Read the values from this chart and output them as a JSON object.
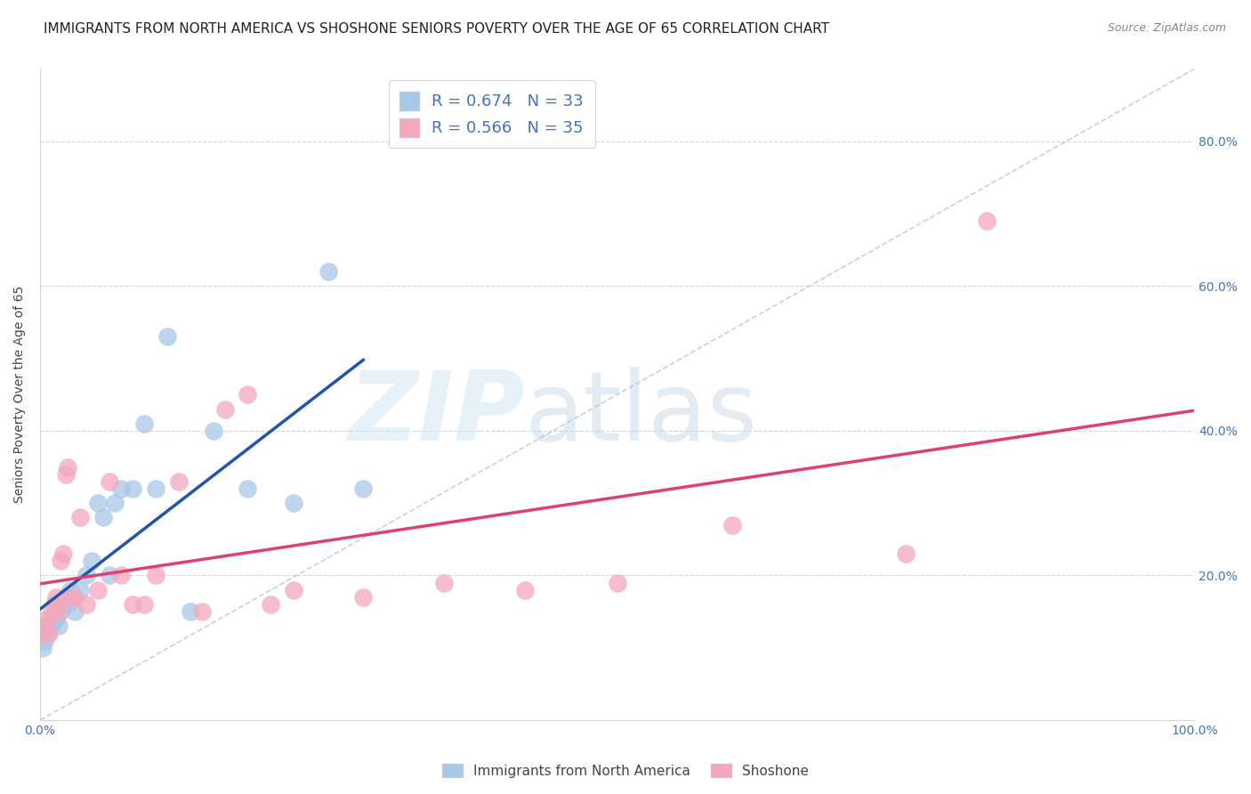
{
  "title": "IMMIGRANTS FROM NORTH AMERICA VS SHOSHONE SENIORS POVERTY OVER THE AGE OF 65 CORRELATION CHART",
  "source": "Source: ZipAtlas.com",
  "ylabel": "Seniors Poverty Over the Age of 65",
  "xlim": [
    0,
    1.0
  ],
  "ylim": [
    0,
    0.9
  ],
  "x_ticks": [
    0.0,
    0.25,
    0.5,
    0.75,
    1.0
  ],
  "x_tick_labels": [
    "0.0%",
    "",
    "",
    "",
    "100.0%"
  ],
  "y_ticks": [
    0.0,
    0.2,
    0.4,
    0.6,
    0.8
  ],
  "y_tick_labels": [
    "",
    "20.0%",
    "40.0%",
    "60.0%",
    "80.0%"
  ],
  "blue_color": "#a8c8e8",
  "pink_color": "#f4a8bc",
  "blue_line_color": "#2255aa",
  "pink_line_color": "#e04070",
  "dashed_line_color": "#b8c8d8",
  "legend_r_blue": "R = 0.674",
  "legend_n_blue": "N = 33",
  "legend_r_pink": "R = 0.566",
  "legend_n_pink": "N = 35",
  "background_color": "#ffffff",
  "grid_color": "#d0d8e8",
  "title_fontsize": 11,
  "axis_tick_fontsize": 10,
  "ylabel_fontsize": 10,
  "blue_scatter_x": [
    0.002,
    0.004,
    0.006,
    0.008,
    0.01,
    0.012,
    0.014,
    0.016,
    0.018,
    0.02,
    0.022,
    0.024,
    0.026,
    0.028,
    0.03,
    0.035,
    0.04,
    0.045,
    0.05,
    0.055,
    0.06,
    0.065,
    0.07,
    0.08,
    0.09,
    0.1,
    0.11,
    0.13,
    0.15,
    0.18,
    0.22,
    0.25,
    0.28
  ],
  "blue_scatter_y": [
    0.1,
    0.11,
    0.12,
    0.13,
    0.13,
    0.14,
    0.14,
    0.13,
    0.15,
    0.16,
    0.17,
    0.16,
    0.18,
    0.17,
    0.15,
    0.18,
    0.2,
    0.22,
    0.3,
    0.28,
    0.2,
    0.3,
    0.32,
    0.32,
    0.41,
    0.32,
    0.53,
    0.15,
    0.4,
    0.32,
    0.3,
    0.62,
    0.32
  ],
  "pink_scatter_x": [
    0.002,
    0.004,
    0.006,
    0.008,
    0.01,
    0.012,
    0.014,
    0.016,
    0.018,
    0.02,
    0.022,
    0.024,
    0.026,
    0.03,
    0.035,
    0.04,
    0.05,
    0.06,
    0.07,
    0.08,
    0.09,
    0.1,
    0.12,
    0.14,
    0.16,
    0.18,
    0.2,
    0.22,
    0.28,
    0.35,
    0.42,
    0.5,
    0.6,
    0.75,
    0.82
  ],
  "pink_scatter_y": [
    0.12,
    0.13,
    0.14,
    0.12,
    0.15,
    0.16,
    0.17,
    0.15,
    0.22,
    0.23,
    0.34,
    0.35,
    0.17,
    0.17,
    0.28,
    0.16,
    0.18,
    0.33,
    0.2,
    0.16,
    0.16,
    0.2,
    0.33,
    0.15,
    0.43,
    0.45,
    0.16,
    0.18,
    0.17,
    0.19,
    0.18,
    0.19,
    0.27,
    0.23,
    0.69
  ]
}
